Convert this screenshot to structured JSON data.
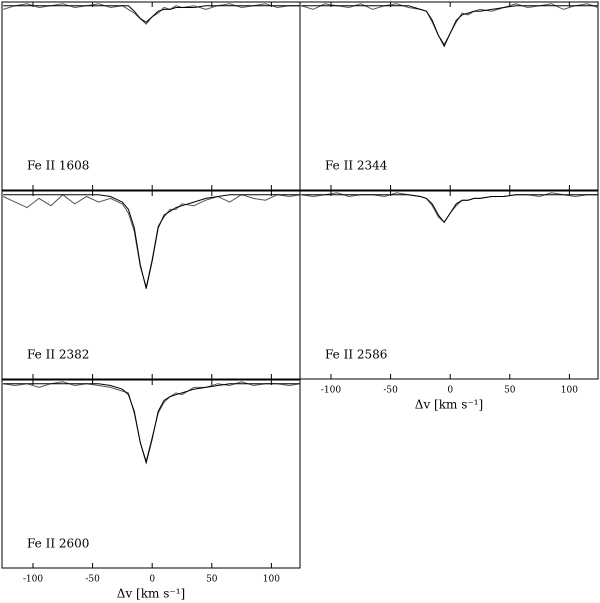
{
  "chart_data": [
    {
      "type": "line",
      "annotation": "Fe II 1608",
      "x": [
        -125,
        -115,
        -105,
        -95,
        -85,
        -75,
        -65,
        -55,
        -45,
        -35,
        -25,
        -20,
        -15,
        -10,
        -5,
        0,
        5,
        10,
        15,
        20,
        25,
        35,
        45,
        55,
        65,
        75,
        85,
        95,
        105,
        115,
        124
      ],
      "series": [
        {
          "color": "#555555",
          "values": [
            0.98,
            1.0,
            1.01,
            0.99,
            1.0,
            1.01,
            0.99,
            1.0,
            1.01,
            0.99,
            1.0,
            0.98,
            0.96,
            0.93,
            0.9,
            0.94,
            0.96,
            0.99,
            0.98,
            1.0,
            0.99,
            1.0,
            0.98,
            1.0,
            1.01,
            0.99,
            1.0,
            1.01,
            0.99,
            1.0,
            1.0
          ]
        },
        {
          "color": "#000000",
          "values": [
            1,
            1,
            1,
            1,
            1,
            1,
            1,
            1,
            1,
            1,
            1,
            1,
            0.97,
            0.93,
            0.91,
            0.94,
            0.97,
            0.98,
            0.98,
            0.99,
            0.99,
            0.99,
            1,
            1,
            1,
            1,
            1,
            1,
            1,
            1,
            1
          ]
        }
      ],
      "xlim": [
        -126,
        124
      ],
      "ylim": [
        0,
        1.02
      ],
      "xticks": [
        -100,
        -50,
        0,
        50,
        100
      ],
      "xtick_labels": false
    },
    {
      "type": "line",
      "annotation": "Fe II 2344",
      "x": [
        -125,
        -115,
        -105,
        -95,
        -85,
        -75,
        -65,
        -55,
        -45,
        -35,
        -25,
        -20,
        -15,
        -10,
        -5,
        0,
        5,
        10,
        15,
        20,
        25,
        35,
        45,
        55,
        65,
        75,
        85,
        95,
        105,
        115,
        124
      ],
      "series": [
        {
          "color": "#555555",
          "values": [
            1.0,
            0.98,
            1.01,
            1.0,
            0.99,
            1.01,
            0.98,
            1.0,
            1.01,
            0.99,
            0.98,
            0.97,
            0.91,
            0.84,
            0.79,
            0.85,
            0.91,
            0.96,
            0.95,
            0.97,
            0.98,
            0.97,
            0.99,
            1.01,
            0.99,
            1.0,
            1.01,
            0.98,
            1.0,
            1.01,
            0.99
          ]
        },
        {
          "color": "#000000",
          "values": [
            1,
            1,
            1,
            1,
            1,
            1,
            1,
            1,
            1,
            1,
            0.98,
            0.97,
            0.92,
            0.84,
            0.78,
            0.85,
            0.92,
            0.95,
            0.96,
            0.97,
            0.97,
            0.98,
            0.99,
            1,
            1,
            1,
            1,
            1,
            1,
            1,
            1
          ]
        }
      ],
      "xlim": [
        -126,
        124
      ],
      "ylim": [
        0,
        1.02
      ],
      "xticks": [
        -100,
        -50,
        0,
        50,
        100
      ],
      "xtick_labels": false
    },
    {
      "type": "line",
      "annotation": "Fe II 2382",
      "x": [
        -125,
        -115,
        -105,
        -95,
        -85,
        -75,
        -65,
        -55,
        -45,
        -35,
        -25,
        -20,
        -15,
        -10,
        -5,
        0,
        5,
        10,
        15,
        20,
        25,
        35,
        45,
        55,
        65,
        75,
        85,
        95,
        105,
        115,
        124
      ],
      "series": [
        {
          "color": "#555555",
          "values": [
            0.99,
            0.96,
            0.93,
            0.98,
            0.94,
            1.0,
            0.95,
            0.99,
            0.96,
            0.98,
            0.95,
            0.9,
            0.8,
            0.61,
            0.5,
            0.65,
            0.83,
            0.88,
            0.92,
            0.92,
            0.95,
            0.94,
            0.97,
            0.99,
            0.96,
            1.0,
            0.98,
            0.97,
            1.0,
            0.99,
            1.0
          ]
        },
        {
          "color": "#000000",
          "values": [
            1,
            1,
            1,
            1,
            1,
            1,
            1,
            1,
            1,
            0.99,
            0.96,
            0.92,
            0.82,
            0.62,
            0.49,
            0.64,
            0.82,
            0.89,
            0.91,
            0.93,
            0.94,
            0.96,
            0.98,
            0.99,
            1,
            1,
            1,
            1,
            1,
            1,
            1
          ]
        }
      ],
      "xlim": [
        -126,
        124
      ],
      "ylim": [
        0,
        1.02
      ],
      "xticks": [
        -100,
        -50,
        0,
        50,
        100
      ],
      "xtick_labels": false
    },
    {
      "type": "line",
      "annotation": "Fe II 2586",
      "x": [
        -125,
        -115,
        -105,
        -95,
        -85,
        -75,
        -65,
        -55,
        -45,
        -35,
        -25,
        -20,
        -15,
        -10,
        -5,
        0,
        5,
        10,
        15,
        20,
        25,
        35,
        45,
        55,
        65,
        75,
        85,
        95,
        105,
        115,
        124
      ],
      "series": [
        {
          "color": "#555555",
          "values": [
            1.0,
            0.99,
            1.0,
            1.01,
            0.99,
            1.0,
            1.0,
            0.99,
            1.01,
            1.0,
            0.99,
            0.98,
            0.94,
            0.88,
            0.85,
            0.9,
            0.94,
            0.97,
            0.97,
            0.98,
            0.98,
            0.99,
            0.99,
            1.0,
            1.0,
            0.99,
            1.01,
            1.0,
            0.99,
            1.0,
            1.0
          ]
        },
        {
          "color": "#000000",
          "values": [
            1,
            1,
            1,
            1,
            1,
            1,
            1,
            1,
            1,
            1,
            0.99,
            0.98,
            0.95,
            0.89,
            0.85,
            0.9,
            0.95,
            0.97,
            0.97,
            0.98,
            0.98,
            0.99,
            0.99,
            1,
            1,
            1,
            1,
            1,
            1,
            1,
            1
          ]
        }
      ],
      "xlim": [
        -126,
        124
      ],
      "ylim": [
        0,
        1.02
      ],
      "xticks": [
        -100,
        -50,
        0,
        50,
        100
      ],
      "xtick_labels": true,
      "xlabel": "Δv [km s⁻¹]"
    },
    {
      "type": "line",
      "annotation": "Fe II 2600",
      "x": [
        -125,
        -115,
        -105,
        -95,
        -85,
        -75,
        -65,
        -55,
        -45,
        -35,
        -25,
        -20,
        -15,
        -10,
        -5,
        0,
        5,
        10,
        15,
        20,
        25,
        35,
        45,
        55,
        65,
        75,
        85,
        95,
        105,
        115,
        124
      ],
      "series": [
        {
          "color": "#555555",
          "values": [
            1.0,
            0.99,
            1.0,
            0.98,
            1.0,
            1.01,
            0.99,
            1.0,
            0.99,
            0.98,
            0.96,
            0.95,
            0.84,
            0.68,
            0.58,
            0.71,
            0.84,
            0.9,
            0.93,
            0.95,
            0.94,
            0.98,
            0.98,
            1.0,
            0.99,
            1.01,
            0.99,
            1.0,
            1.0,
            0.99,
            1.0
          ]
        },
        {
          "color": "#000000",
          "values": [
            1,
            1,
            1,
            1,
            1,
            1,
            1,
            1,
            1,
            0.99,
            0.97,
            0.94,
            0.85,
            0.68,
            0.57,
            0.7,
            0.85,
            0.91,
            0.93,
            0.94,
            0.95,
            0.97,
            0.98,
            0.99,
            1,
            1,
            1,
            1,
            1,
            1,
            1
          ]
        }
      ],
      "xlim": [
        -126,
        124
      ],
      "ylim": [
        0,
        1.02
      ],
      "xticks": [
        -100,
        -50,
        0,
        50,
        100
      ],
      "xtick_labels": true,
      "xlabel": "Δv [km s⁻¹]"
    }
  ]
}
